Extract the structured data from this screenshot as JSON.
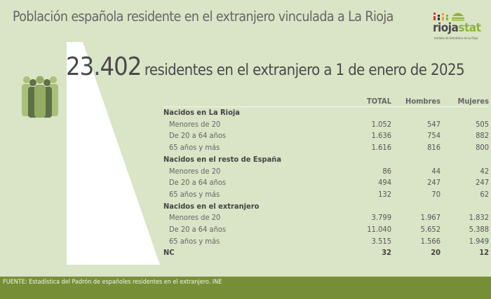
{
  "title": "Población española residente en el extranjero vinculada a La Rioja",
  "logo": {
    "name": "riojastat",
    "part1": "rioja",
    "part2": "stat",
    "subtitle": "Instituto de Estadística de La Rioja"
  },
  "headline": {
    "value": "23.402",
    "text": "residentes en el extranjero a 1 de enero de 2025"
  },
  "table": {
    "columns": [
      "TOTAL",
      "Hombres",
      "Mujeres"
    ],
    "rows": [
      {
        "type": "group",
        "label": "Nacidos en La Rioja"
      },
      {
        "type": "sub",
        "label": "Menores de 20",
        "values": [
          "1.052",
          "547",
          "505"
        ]
      },
      {
        "type": "sub",
        "label": "De 20 a 64 años",
        "values": [
          "1.636",
          "754",
          "882"
        ]
      },
      {
        "type": "sub",
        "label": "65 años y más",
        "values": [
          "1.616",
          "816",
          "800"
        ]
      },
      {
        "type": "group",
        "label": "Nacidos en el resto de España"
      },
      {
        "type": "sub",
        "label": "Menores de 20",
        "values": [
          "86",
          "44",
          "42"
        ]
      },
      {
        "type": "sub",
        "label": "De 20 a 64 años",
        "values": [
          "494",
          "247",
          "247"
        ]
      },
      {
        "type": "sub",
        "label": "65 años y más",
        "values": [
          "132",
          "70",
          "62"
        ]
      },
      {
        "type": "group",
        "label": "Nacidos en el extranjero"
      },
      {
        "type": "sub",
        "label": "Menores de 20",
        "values": [
          "3.799",
          "1.967",
          "1.832"
        ]
      },
      {
        "type": "sub",
        "label": "De 20 a 64 años",
        "values": [
          "11.040",
          "5.652",
          "5.388"
        ]
      },
      {
        "type": "sub",
        "label": "65 años y más",
        "values": [
          "3.515",
          "1.566",
          "1.949"
        ]
      },
      {
        "type": "group",
        "label": "NC",
        "values": [
          "32",
          "20",
          "12"
        ]
      }
    ]
  },
  "footer": "FUENTE: Estadística del Padrón de españoles residentes en el extranjero. INE",
  "colors": {
    "background": "#dae4c6",
    "footer": "#768f37",
    "accent": "#8db33a"
  }
}
